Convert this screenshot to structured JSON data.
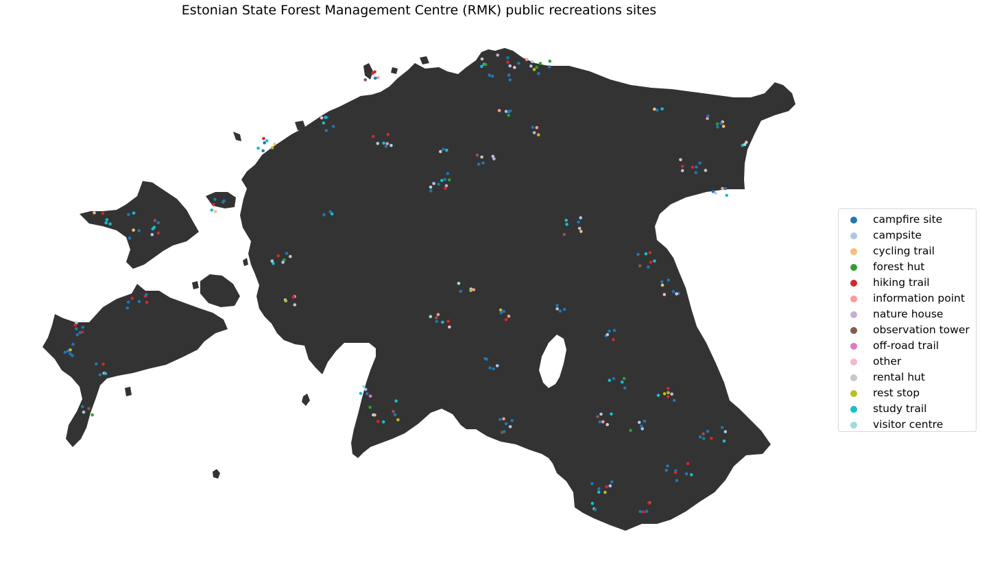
{
  "title": "Estonian State Forest Management Centre (RMK) public recreations sites",
  "map": {
    "land_color": "#333333",
    "background_color": "#ffffff",
    "region": "Estonia"
  },
  "legend": {
    "placement": "center-right",
    "items": [
      {
        "label": "campfire site",
        "color": "#1f77b4"
      },
      {
        "label": "campsite",
        "color": "#aec7e8"
      },
      {
        "label": "cycling trail",
        "color": "#ffbb78"
      },
      {
        "label": "forest hut",
        "color": "#2ca02c"
      },
      {
        "label": "hiking trail",
        "color": "#d62728"
      },
      {
        "label": "information point",
        "color": "#ff9896"
      },
      {
        "label": "nature house",
        "color": "#c5b0d5"
      },
      {
        "label": "observation tower",
        "color": "#8c564b"
      },
      {
        "label": "off-road trail",
        "color": "#e377c2"
      },
      {
        "label": "other",
        "color": "#f7b6d2"
      },
      {
        "label": "rental hut",
        "color": "#c7c7c7"
      },
      {
        "label": "rest stop",
        "color": "#bcbd22"
      },
      {
        "label": "study trail",
        "color": "#17becf"
      },
      {
        "label": "visitor centre",
        "color": "#9edae5"
      }
    ]
  }
}
